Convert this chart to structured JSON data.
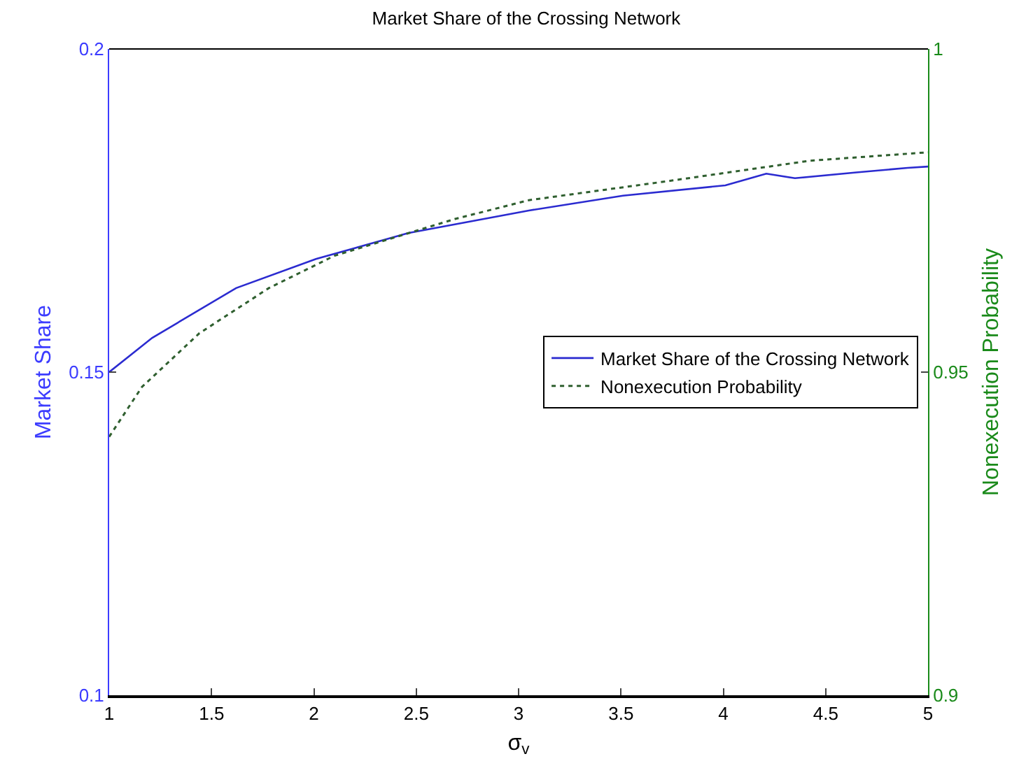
{
  "chart_data": {
    "type": "line",
    "title": "Market Share of the Crossing Network",
    "xlabel": "σ$_{v}$",
    "ylabel": "Market Share",
    "y2label": "Nonexecution Probability",
    "xlim": [
      1,
      5
    ],
    "xticks": [
      1,
      1.5,
      2,
      2.5,
      3,
      3.5,
      4,
      4.5,
      5
    ],
    "ylim": [
      0.1,
      0.2
    ],
    "yticks": [
      0.1,
      0.15,
      0.2
    ],
    "y2lim": [
      0.9,
      1
    ],
    "y2ticks": [
      0.9,
      0.95,
      1
    ],
    "grid": false,
    "legend": "center",
    "marker": "none",
    "series": [
      {
        "name": "Market Share of the Crossing Network",
        "color": "#2b2bd0",
        "line_style": "solid",
        "x": [
          1,
          1.21,
          1.62,
          2.01,
          2.46,
          3.05,
          3.51,
          4.01,
          4.21,
          4.35,
          4.65,
          4.9,
          5
        ],
        "values": [
          0.15,
          0.1553,
          0.163,
          0.1675,
          0.1715,
          0.175,
          0.1773,
          0.1789,
          0.1807,
          0.18,
          0.1809,
          0.1816,
          0.1818
        ]
      },
      {
        "name": "Nonexecution Probability",
        "color": "#2f5f2f",
        "line_style": "dotted",
        "axis": "y2",
        "x": [
          1,
          1.16,
          1.44,
          1.78,
          2.1,
          2.69,
          3.05,
          3.74,
          4.42,
          4.95,
          5
        ],
        "values": [
          0.94,
          0.9477,
          0.956,
          0.963,
          0.968,
          0.9737,
          0.9766,
          0.9796,
          0.9827,
          0.9839,
          0.984
        ]
      }
    ]
  }
}
